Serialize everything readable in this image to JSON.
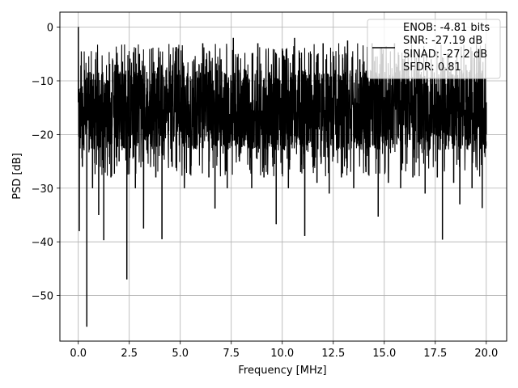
{
  "chart_data": {
    "type": "line",
    "title": "",
    "xlabel": "Frequency [MHz]",
    "ylabel": "PSD [dB]",
    "xlim": [
      -0.9,
      21.0
    ],
    "ylim": [
      -58.5,
      2.8
    ],
    "xticks": [
      0.0,
      2.5,
      5.0,
      7.5,
      10.0,
      12.5,
      15.0,
      17.5,
      20.0
    ],
    "xtick_labels": [
      "0.0",
      "2.5",
      "5.0",
      "7.5",
      "10.0",
      "12.5",
      "15.0",
      "17.5",
      "20.0"
    ],
    "yticks": [
      0,
      -10,
      -20,
      -30,
      -40,
      -50
    ],
    "ytick_labels": [
      "0",
      "−10",
      "−20",
      "−30",
      "−40",
      "−50"
    ],
    "grid": true,
    "legend_position": "top-right",
    "line_color": "#000000",
    "series": [
      {
        "x": [
          0.0,
          0.05,
          0.1,
          0.2,
          0.3,
          0.42,
          0.55,
          0.7,
          0.85,
          1.0,
          1.15,
          1.25,
          1.45,
          1.6,
          1.8,
          2.0,
          2.2,
          2.38,
          2.6,
          2.8,
          3.0,
          3.2,
          3.5,
          3.8,
          4.1,
          4.3,
          4.6,
          4.9,
          5.2,
          5.5,
          5.8,
          6.1,
          6.4,
          6.7,
          7.0,
          7.3,
          7.6,
          7.9,
          8.2,
          8.5,
          8.8,
          9.1,
          9.4,
          9.7,
          10.0,
          10.3,
          10.6,
          10.9,
          11.1,
          11.4,
          11.7,
          12.0,
          12.3,
          12.6,
          12.9,
          13.2,
          13.5,
          13.8,
          14.1,
          14.4,
          14.7,
          14.9,
          15.2,
          15.5,
          15.8,
          16.1,
          16.4,
          16.7,
          17.0,
          17.3,
          17.6,
          17.85,
          18.1,
          18.4,
          18.7,
          19.0,
          19.3,
          19.6,
          19.8,
          20.0
        ],
        "y": [
          0.0,
          -38.0,
          -12.0,
          -26.0,
          -8.0,
          -55.8,
          -15.0,
          -30.0,
          -6.0,
          -35.0,
          -18.0,
          -39.7,
          -10.0,
          -28.0,
          -7.0,
          -25.0,
          -14.0,
          -47.0,
          -9.0,
          -30.0,
          -5.0,
          -37.5,
          -12.0,
          -28.0,
          -39.5,
          -8.0,
          -26.0,
          -4.0,
          -30.0,
          -10.0,
          -22.0,
          -3.0,
          -28.0,
          -33.8,
          -6.0,
          -30.0,
          -2.0,
          -25.0,
          -8.0,
          -30.0,
          -3.0,
          -28.0,
          -9.0,
          -36.7,
          -4.0,
          -30.0,
          -2.0,
          -27.0,
          -38.9,
          -5.0,
          -29.0,
          -3.0,
          -31.0,
          -8.0,
          -28.0,
          -2.5,
          -30.0,
          -6.0,
          -27.0,
          -3.0,
          -35.3,
          -5.0,
          -29.0,
          -3.0,
          -30.0,
          -7.0,
          -28.0,
          -4.0,
          -31.0,
          -6.0,
          -28.0,
          -39.6,
          -5.0,
          -29.0,
          -33.0,
          -7.0,
          -30.0,
          -4.0,
          -33.7,
          -20.0
        ]
      }
    ],
    "legend": {
      "entries": [
        "ENOB: -4.81 bits",
        "SNR: -27.19 dB",
        "SINAD: -27.2 dB",
        "SFDR: 0.81"
      ]
    }
  }
}
